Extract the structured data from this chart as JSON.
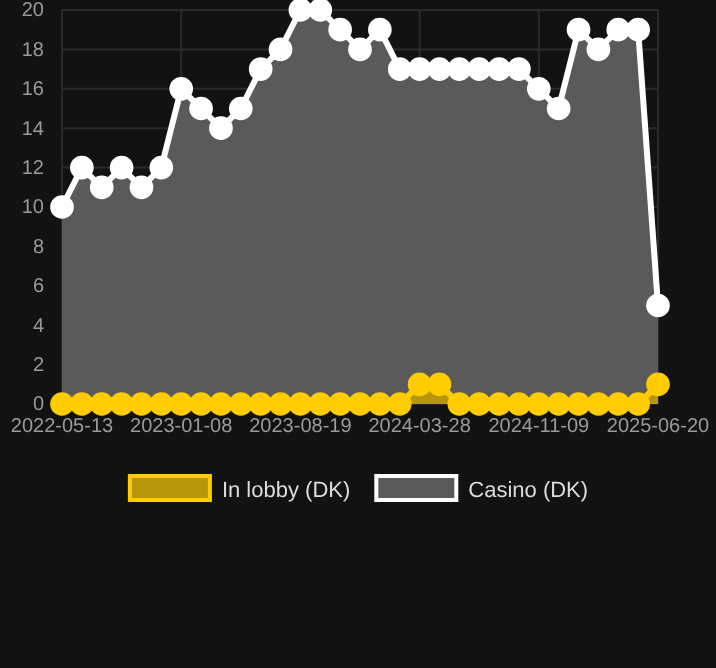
{
  "chart_data": {
    "type": "area",
    "categories": [
      "2022-05-13",
      null,
      null,
      null,
      null,
      null,
      "2023-01-08",
      null,
      null,
      null,
      null,
      null,
      "2023-08-19",
      null,
      null,
      null,
      null,
      null,
      "2024-03-28",
      null,
      null,
      null,
      null,
      null,
      "2024-11-09",
      null,
      null,
      null,
      null,
      null,
      "2025-06-20"
    ],
    "series": [
      {
        "name": "In lobby (DK)",
        "color": "#ffcc00",
        "values": [
          0,
          0,
          0,
          0,
          0,
          0,
          0,
          0,
          0,
          0,
          0,
          0,
          0,
          0,
          0,
          0,
          0,
          0,
          1,
          1,
          0,
          0,
          0,
          0,
          0,
          0,
          0,
          0,
          0,
          0,
          1
        ]
      },
      {
        "name": "Casino (DK)",
        "color": "#ffffff",
        "values": [
          10,
          12,
          11,
          12,
          11,
          12,
          16,
          15,
          14,
          15,
          17,
          18,
          20,
          20,
          19,
          18,
          19,
          17,
          17,
          17,
          17,
          17,
          17,
          17,
          16,
          15,
          19,
          18,
          19,
          19,
          5
        ]
      }
    ],
    "ylim": [
      0,
      20
    ],
    "yticks": [
      0,
      2,
      4,
      6,
      8,
      10,
      12,
      14,
      16,
      18,
      20
    ],
    "grid": true,
    "legend": "bottom",
    "marker": "circle",
    "line_style": "solid"
  }
}
